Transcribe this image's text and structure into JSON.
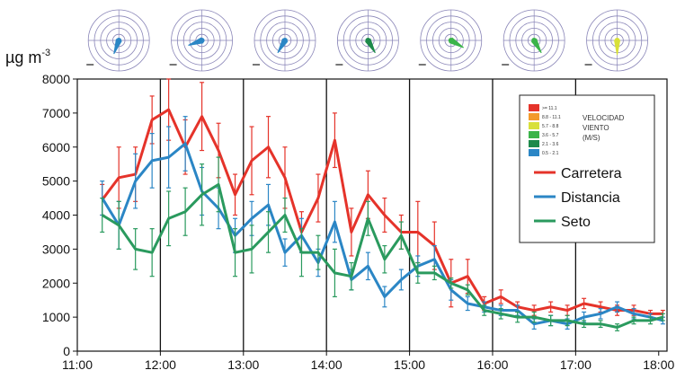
{
  "chart_data": {
    "type": "line",
    "ylabel": "µg m",
    "ylabel_sup": "-3",
    "ylim": [
      0,
      8000
    ],
    "y_ticks": [
      0,
      1000,
      2000,
      3000,
      4000,
      5000,
      6000,
      7000,
      8000
    ],
    "xlim": [
      11.0,
      18.1
    ],
    "x_ticks": [
      {
        "value": 11,
        "label": "11:00"
      },
      {
        "value": 12,
        "label": "12:00"
      },
      {
        "value": 13,
        "label": "13:00"
      },
      {
        "value": 14,
        "label": "14:00"
      },
      {
        "value": 15,
        "label": "15:00"
      },
      {
        "value": 16,
        "label": "16:00"
      },
      {
        "value": 17,
        "label": "17:00"
      },
      {
        "value": 18,
        "label": "18:00"
      }
    ],
    "hour_dividers": [
      12,
      13,
      14,
      15,
      16,
      17
    ],
    "x": [
      11.3,
      11.5,
      11.7,
      11.9,
      12.1,
      12.3,
      12.5,
      12.7,
      12.9,
      13.1,
      13.3,
      13.5,
      13.7,
      13.9,
      14.1,
      14.3,
      14.5,
      14.7,
      14.9,
      15.1,
      15.3,
      15.5,
      15.7,
      15.9,
      16.1,
      16.3,
      16.5,
      16.7,
      16.9,
      17.1,
      17.3,
      17.5,
      17.7,
      17.9,
      18.05
    ],
    "series": [
      {
        "name": "Carretera",
        "color": "#e5332a",
        "values": [
          4450,
          5100,
          5200,
          6800,
          7100,
          6000,
          6900,
          5900,
          4600,
          5600,
          6000,
          5100,
          3500,
          4500,
          6200,
          3500,
          4600,
          4000,
          3500,
          3500,
          3100,
          2000,
          2200,
          1400,
          1600,
          1300,
          1200,
          1300,
          1200,
          1400,
          1300,
          1200,
          1200,
          1100,
          1100
        ],
        "err": [
          450,
          900,
          800,
          700,
          900,
          800,
          1000,
          800,
          600,
          1000,
          900,
          900,
          600,
          700,
          800,
          700,
          700,
          500,
          500,
          900,
          700,
          700,
          500,
          200,
          200,
          150,
          150,
          150,
          150,
          150,
          150,
          150,
          150,
          100,
          100
        ]
      },
      {
        "name": "Distancia",
        "color": "#2b86c5",
        "values": [
          4500,
          3700,
          5000,
          5600,
          5700,
          6100,
          4700,
          4200,
          3400,
          3900,
          4300,
          2900,
          3400,
          2600,
          3800,
          2100,
          2500,
          1600,
          2100,
          2500,
          2700,
          1800,
          1400,
          1300,
          1200,
          1200,
          800,
          900,
          800,
          1000,
          1100,
          1300,
          1100,
          1000,
          900
        ],
        "err": [
          500,
          700,
          800,
          800,
          900,
          800,
          700,
          600,
          500,
          500,
          600,
          400,
          500,
          400,
          600,
          300,
          400,
          300,
          300,
          300,
          400,
          300,
          200,
          150,
          150,
          150,
          150,
          150,
          150,
          150,
          150,
          150,
          150,
          100,
          100
        ]
      },
      {
        "name": "Seto",
        "color": "#2a9a5e",
        "values": [
          4000,
          3700,
          3000,
          2900,
          3900,
          4100,
          4600,
          4900,
          2900,
          3000,
          3500,
          4000,
          2900,
          2900,
          2300,
          2200,
          3900,
          2700,
          3400,
          2300,
          2300,
          2000,
          1800,
          1200,
          1100,
          1000,
          1000,
          900,
          900,
          800,
          800,
          700,
          900,
          900,
          1000
        ],
        "err": [
          500,
          700,
          600,
          700,
          800,
          700,
          900,
          800,
          700,
          700,
          600,
          500,
          700,
          500,
          700,
          400,
          500,
          400,
          400,
          300,
          200,
          150,
          150,
          150,
          150,
          150,
          150,
          150,
          150,
          100,
          100,
          100,
          100,
          100,
          100
        ]
      }
    ],
    "legend_position": "top-right",
    "wind_legend": {
      "title_lines": [
        "VELOCIDAD",
        "VIENTO",
        "(M/S)"
      ],
      "items": [
        {
          "label": ">= 11.1",
          "color": "#e5332a"
        },
        {
          "label": "8.8 - 11.1",
          "color": "#f39a2b"
        },
        {
          "label": "5.7 - 8.8",
          "color": "#d8e03a"
        },
        {
          "label": "3.6 - 5.7",
          "color": "#3bb44a"
        },
        {
          "label": "2.1 - 3.6",
          "color": "#1e8a4b"
        },
        {
          "label": "0.5 - 2.1",
          "color": "#2b86c5"
        }
      ]
    },
    "wind_roses": [
      {
        "hour": 11.5,
        "color": "#2b86c5",
        "angle": 200
      },
      {
        "hour": 12.5,
        "color": "#2b86c5",
        "angle": 250
      },
      {
        "hour": 13.5,
        "color": "#2b86c5",
        "angle": 210
      },
      {
        "hour": 14.5,
        "color": "#1e8a4b",
        "angle": 150
      },
      {
        "hour": 15.5,
        "color": "#3bb44a",
        "angle": 120
      },
      {
        "hour": 16.5,
        "color": "#3bb44a",
        "angle": 150
      },
      {
        "hour": 17.5,
        "color": "#d8e03a",
        "angle": 180
      }
    ]
  }
}
